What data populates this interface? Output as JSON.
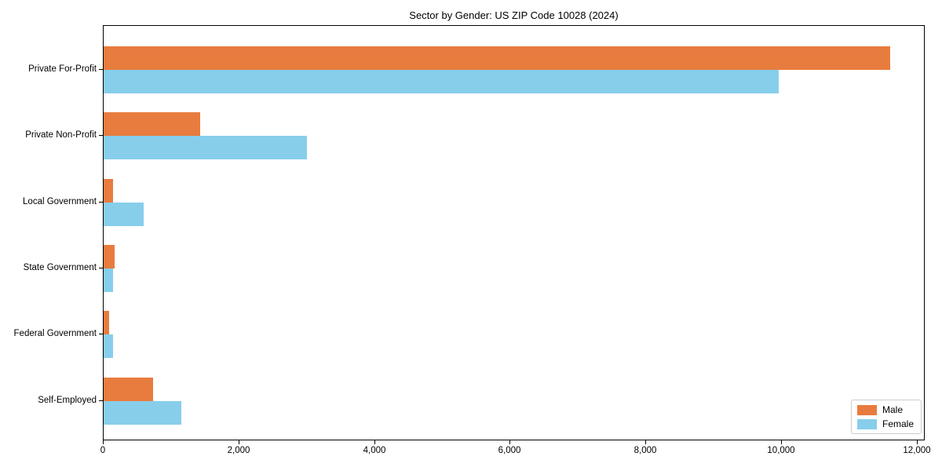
{
  "chart_data": {
    "type": "bar",
    "orientation": "horizontal",
    "title": "Sector by Gender: US ZIP Code 10028 (2024)",
    "categories": [
      "Private For-Profit",
      "Private Non-Profit",
      "Local Government",
      "State Government",
      "Federal Government",
      "Self-Employed"
    ],
    "series": [
      {
        "name": "Male",
        "color": "#E87C3E",
        "values": [
          11600,
          1420,
          140,
          160,
          80,
          730
        ]
      },
      {
        "name": "Female",
        "color": "#87CEEB",
        "values": [
          9950,
          3000,
          590,
          135,
          140,
          1150
        ]
      }
    ],
    "xlabel": "",
    "ylabel": "",
    "xlim": [
      0,
      12120
    ],
    "xticks": [
      {
        "value": 0,
        "label": "0"
      },
      {
        "value": 2000,
        "label": "2,000"
      },
      {
        "value": 4000,
        "label": "4,000"
      },
      {
        "value": 6000,
        "label": "6,000"
      },
      {
        "value": 8000,
        "label": "8,000"
      },
      {
        "value": 10000,
        "label": "10,000"
      },
      {
        "value": 12000,
        "label": "12,000"
      }
    ],
    "grid": false,
    "legend": {
      "position": "lower right",
      "entries": [
        "Male",
        "Female"
      ]
    }
  }
}
